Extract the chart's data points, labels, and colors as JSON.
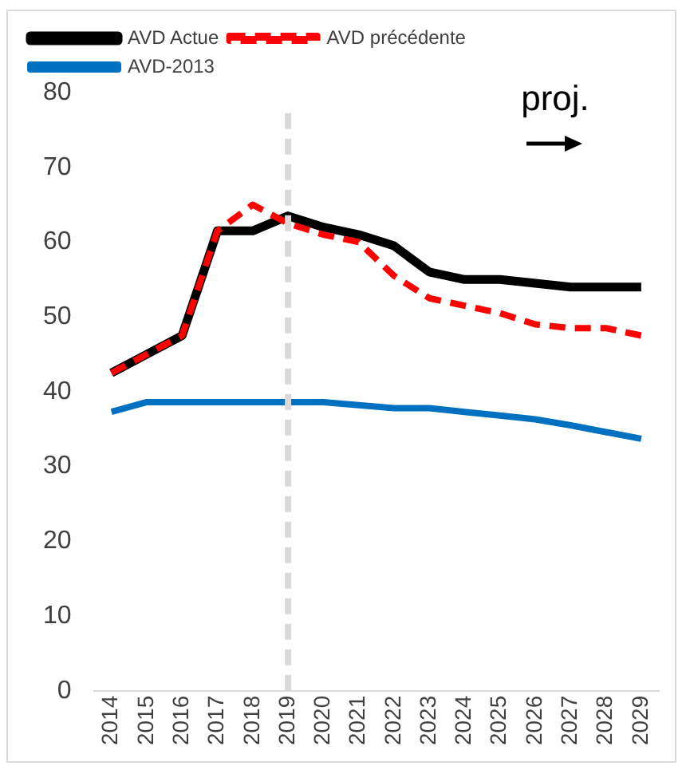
{
  "chart_data": {
    "type": "line",
    "categories": [
      "2014",
      "2015",
      "2016",
      "2017",
      "2018",
      "2019",
      "2020",
      "2021",
      "2022",
      "2023",
      "2024",
      "2025",
      "2026",
      "2027",
      "2028",
      "2029"
    ],
    "series": [
      {
        "name": "AVD Actue",
        "color": "#000000",
        "line_style": "solid",
        "values": [
          42.5,
          45,
          47.5,
          61.5,
          61.5,
          63.5,
          62,
          61,
          59.5,
          56,
          55,
          55,
          54.5,
          54,
          54,
          54
        ]
      },
      {
        "name": "AVD précédente",
        "color": "#ff0000",
        "line_style": "dashed",
        "values": [
          42.5,
          45,
          47.5,
          61.5,
          65,
          62.5,
          61,
          60,
          55.5,
          52.5,
          51.5,
          50.5,
          49,
          48.5,
          48.5,
          47.5
        ]
      },
      {
        "name": "AVD-2013",
        "color": "#0070c0",
        "line_style": "solid",
        "values": [
          37.3,
          38.6,
          38.6,
          38.6,
          38.6,
          38.6,
          38.6,
          38.2,
          37.8,
          37.8,
          37.3,
          36.8,
          36.3,
          35.5,
          34.6,
          33.7
        ]
      }
    ],
    "ylim": [
      0,
      80
    ],
    "yticks": [
      0,
      10,
      20,
      30,
      40,
      50,
      60,
      70,
      80
    ],
    "grid": false,
    "legend": "top",
    "marker": "none",
    "ref_lines": [
      {
        "axis": "x",
        "value": "2019",
        "color": "#d9d9d9",
        "line_style": "dashed"
      }
    ],
    "annotations": [
      "proj."
    ]
  }
}
